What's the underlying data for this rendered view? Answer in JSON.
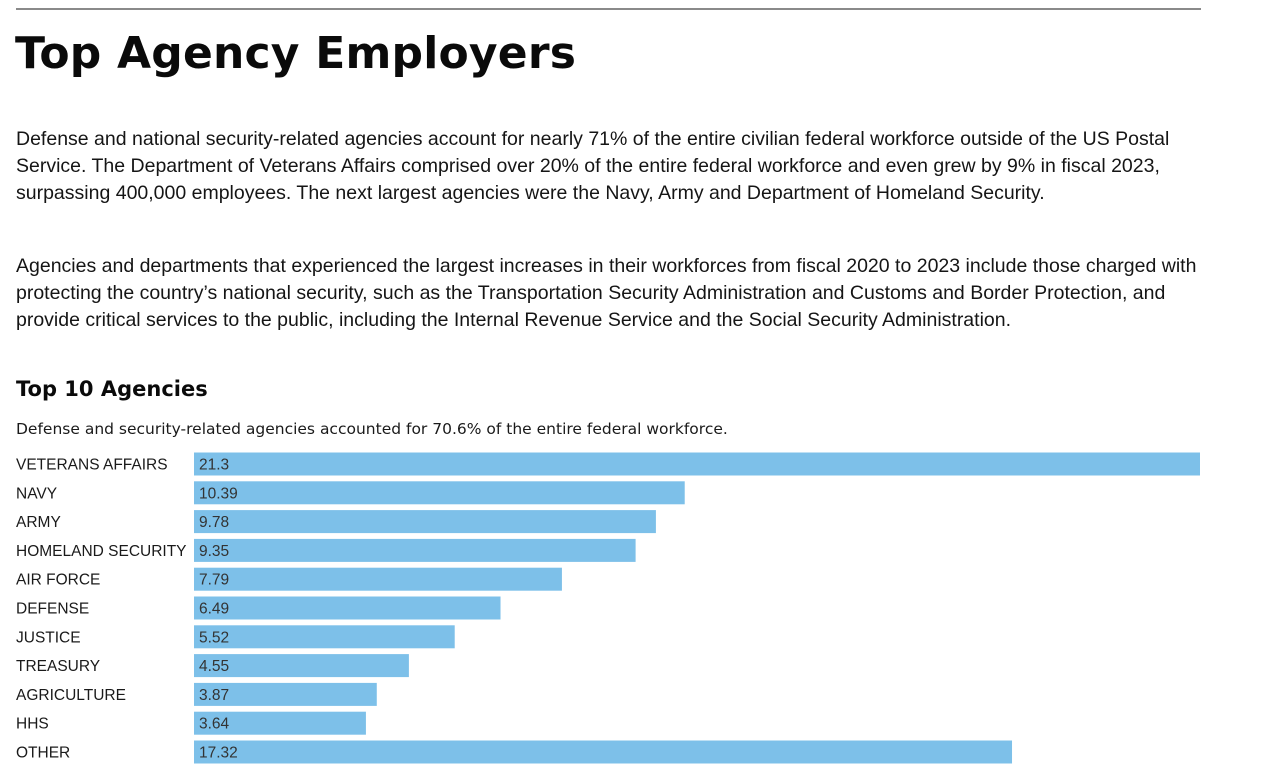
{
  "page": {
    "title": "Top Agency Employers",
    "paragraphs": [
      "Defense and national security-related agencies account for nearly 71% of the entire civilian federal workforce outside of the US Postal Service. The Department of Veterans Affairs comprised over 20% of the entire federal workforce and even grew by 9% in fiscal 2023, surpassing 400,000 employees. The next largest agencies were the Navy, Army and Department of Homeland Security.",
      "Agencies and departments that experienced the largest increases in their workforces from fiscal 2020 to 2023 include those charged with protecting the country’s national security, such as the Transportation Security Administration and Customs and Border Protection, and provide critical services to the public, including the Internal Revenue Service and the Social Security Administration."
    ]
  },
  "chart_data": {
    "type": "bar",
    "orientation": "horizontal",
    "title": "Top 10 Agencies",
    "subtitle": "Defense and security-related agencies accounted for 70.6% of the entire federal workforce.",
    "categories": [
      "VETERANS AFFAIRS",
      "NAVY",
      "ARMY",
      "HOMELAND SECURITY",
      "AIR FORCE",
      "DEFENSE",
      "JUSTICE",
      "TREASURY",
      "AGRICULTURE",
      "HHS",
      "OTHER"
    ],
    "values": [
      21.3,
      10.39,
      9.78,
      9.35,
      7.79,
      6.49,
      5.52,
      4.55,
      3.87,
      3.64,
      17.32
    ],
    "value_labels": [
      "21.3",
      "10.39",
      "9.78",
      "9.35",
      "7.79",
      "6.49",
      "5.52",
      "4.55",
      "3.87",
      "3.64",
      "17.32"
    ],
    "xlim": [
      0,
      21.3
    ],
    "bar_color": "#7dc0e9",
    "grid": false,
    "legend": "none"
  }
}
